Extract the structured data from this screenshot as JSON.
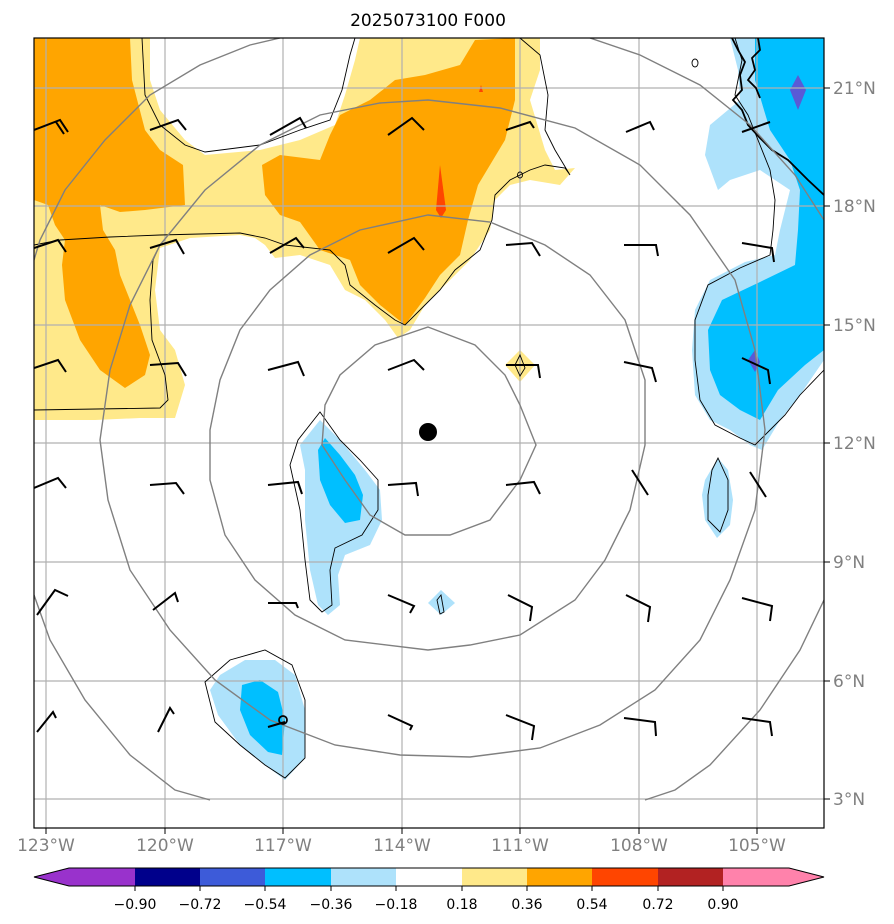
{
  "title": "2025073100 F000",
  "axes": {
    "lon_labels": [
      "123°W",
      "120°W",
      "117°W",
      "114°W",
      "111°W",
      "108°W",
      "105°W"
    ],
    "lat_labels": [
      "3°N",
      "6°N",
      "9°N",
      "12°N",
      "15°N",
      "18°N",
      "21°N"
    ],
    "lon_range": [
      -123.3,
      -103.3
    ],
    "lat_range": [
      2.3,
      22.3
    ],
    "gridlines": true,
    "label_color": "#808080"
  },
  "center_marker": {
    "lon": -112.4,
    "lat": 12.3
  },
  "range_rings": {
    "center_lon": -112.4,
    "center_lat": 12.3,
    "radii_deg": [
      3,
      6,
      9,
      12
    ]
  },
  "colorbar": {
    "ticks": [
      "−0.90",
      "−0.72",
      "−0.54",
      "−0.36",
      "−0.18",
      "0.18",
      "0.36",
      "0.54",
      "0.72",
      "0.90"
    ],
    "colors": [
      "#9932cc",
      "#00008b",
      "#3d5bd9",
      "#00bfff",
      "#aee2fb",
      "#ffffff",
      "#ffe98a",
      "#ffa500",
      "#ff4500",
      "#b22222",
      "#ff82ab"
    ],
    "extend": "both"
  },
  "colors": {
    "light_yellow": "#ffe98a",
    "orange": "#ffa500",
    "red_orange": "#ff4500",
    "light_blue": "#aee2fb",
    "deep_sky_blue": "#00bfff",
    "royal_blue": "#5a5ad6",
    "gridline": "#b0b0b0",
    "ring": "#808080"
  }
}
